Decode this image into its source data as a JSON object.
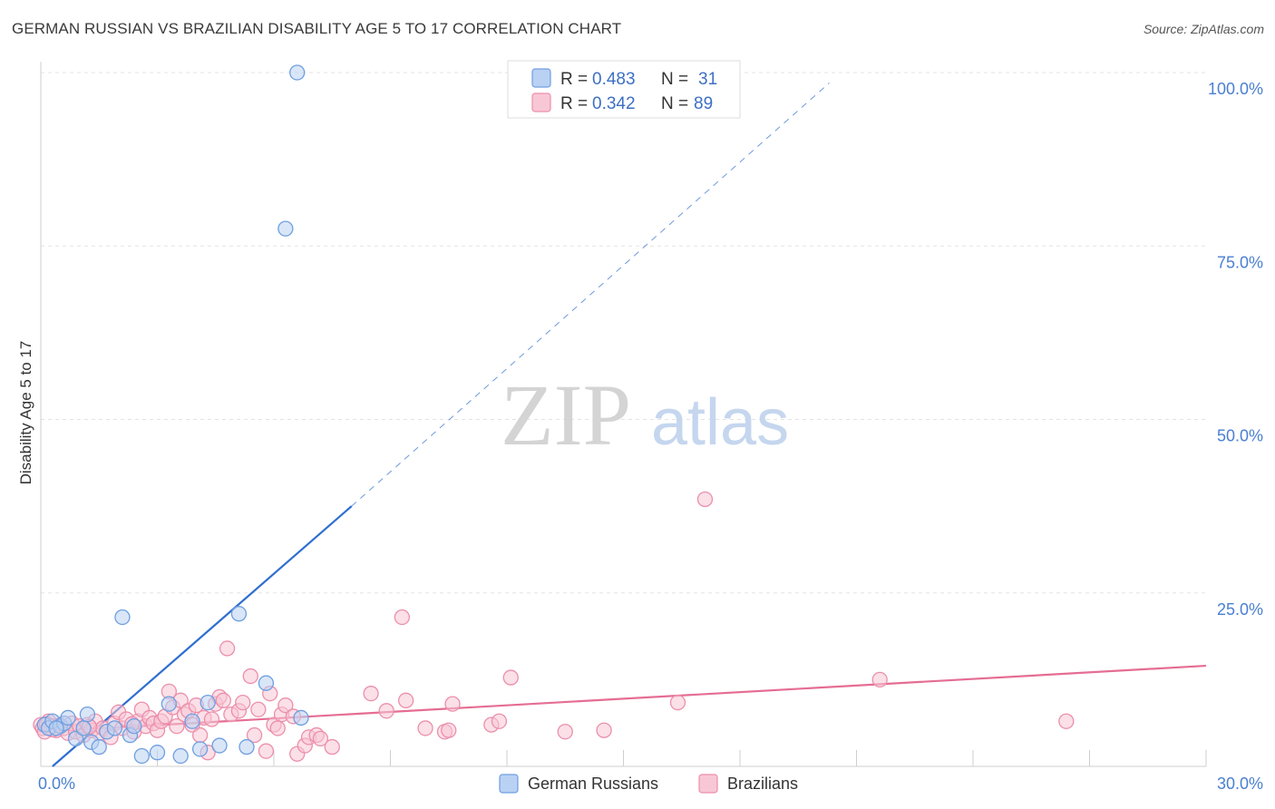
{
  "header": {
    "title": "GERMAN RUSSIAN VS BRAZILIAN DISABILITY AGE 5 TO 17 CORRELATION CHART",
    "source": "Source: ZipAtlas.com"
  },
  "watermark": {
    "zip": "ZIP",
    "atlas": "atlas"
  },
  "colors": {
    "blue": "#6f9fe0",
    "blue_fill": "#b9d1f3",
    "blue_line": "#2f6fcf",
    "pink": "#ec8fab",
    "pink_fill": "#f8c7d6",
    "pink_line": "#e56d93",
    "tick": "#4a7fd1",
    "grid": "#e3e3e3"
  },
  "legend": {
    "rows": [
      {
        "r_label": "R =",
        "r_value": "0.483",
        "n_label": "N =",
        "n_value": "31"
      },
      {
        "r_label": "R =",
        "r_value": "0.342",
        "n_label": "N =",
        "n_value": "89"
      }
    ]
  },
  "bottom_legend": {
    "items": [
      "German Russians",
      "Brazilians"
    ]
  },
  "chart_data": {
    "type": "scatter",
    "title": "GERMAN RUSSIAN VS BRAZILIAN DISABILITY AGE 5 TO 17 CORRELATION CHART",
    "xlabel": "",
    "ylabel": "Disability Age 5 to 17",
    "xlim": [
      0,
      30
    ],
    "ylim": [
      0,
      100
    ],
    "x_tick_labels": [
      "0.0%",
      "30.0%"
    ],
    "y_ticks": [
      25,
      50,
      75,
      100
    ],
    "y_tick_labels": [
      "25.0%",
      "50.0%",
      "75.0%",
      "100.0%"
    ],
    "series": [
      {
        "name": "German Russians",
        "color": "#6f9fe0",
        "r": 0.483,
        "n": 31,
        "trend": {
          "x0": 0.3,
          "y0": 0.0,
          "x1": 8.0,
          "y1": 37.5,
          "dash_to_x": 20.3,
          "dash_to_y": 98.5
        },
        "points": [
          [
            0.1,
            6.0
          ],
          [
            0.2,
            5.5
          ],
          [
            0.3,
            6.5
          ],
          [
            0.5,
            5.8
          ],
          [
            0.6,
            6.2
          ],
          [
            0.7,
            7.0
          ],
          [
            0.9,
            4.0
          ],
          [
            1.1,
            5.5
          ],
          [
            1.2,
            7.5
          ],
          [
            1.3,
            3.5
          ],
          [
            1.5,
            2.8
          ],
          [
            1.7,
            5.0
          ],
          [
            1.9,
            5.5
          ],
          [
            2.1,
            21.5
          ],
          [
            2.3,
            4.5
          ],
          [
            2.4,
            5.8
          ],
          [
            2.6,
            1.5
          ],
          [
            3.0,
            2.0
          ],
          [
            3.3,
            9.0
          ],
          [
            3.6,
            1.5
          ],
          [
            3.9,
            6.5
          ],
          [
            4.1,
            2.5
          ],
          [
            4.3,
            9.2
          ],
          [
            4.6,
            3.0
          ],
          [
            5.1,
            22.0
          ],
          [
            5.3,
            2.8
          ],
          [
            5.8,
            12.0
          ],
          [
            6.3,
            77.5
          ],
          [
            6.6,
            100.0
          ],
          [
            6.7,
            7.0
          ],
          [
            0.4,
            5.5
          ]
        ]
      },
      {
        "name": "Brazilians",
        "color": "#ec8fab",
        "r": 0.342,
        "n": 89,
        "trend": {
          "x0": 0.0,
          "y0": 5.0,
          "x1": 30.0,
          "y1": 14.5
        },
        "points": [
          [
            0.0,
            6.0
          ],
          [
            0.05,
            5.5
          ],
          [
            0.1,
            5.0
          ],
          [
            0.2,
            6.5
          ],
          [
            0.3,
            5.8
          ],
          [
            0.4,
            5.2
          ],
          [
            0.5,
            6.0
          ],
          [
            0.6,
            5.5
          ],
          [
            0.7,
            4.8
          ],
          [
            0.8,
            6.2
          ],
          [
            0.9,
            5.0
          ],
          [
            1.0,
            5.8
          ],
          [
            1.1,
            4.5
          ],
          [
            1.2,
            6.0
          ],
          [
            1.3,
            5.2
          ],
          [
            1.4,
            6.5
          ],
          [
            1.5,
            4.8
          ],
          [
            1.6,
            5.5
          ],
          [
            1.7,
            5.0
          ],
          [
            1.8,
            4.2
          ],
          [
            1.9,
            6.2
          ],
          [
            2.0,
            7.8
          ],
          [
            2.1,
            5.5
          ],
          [
            2.2,
            6.8
          ],
          [
            2.4,
            5.0
          ],
          [
            2.5,
            6.5
          ],
          [
            2.6,
            8.2
          ],
          [
            2.7,
            5.8
          ],
          [
            2.8,
            7.0
          ],
          [
            2.9,
            6.2
          ],
          [
            3.0,
            5.2
          ],
          [
            3.1,
            6.5
          ],
          [
            3.2,
            7.2
          ],
          [
            3.3,
            10.8
          ],
          [
            3.4,
            8.5
          ],
          [
            3.5,
            5.8
          ],
          [
            3.6,
            9.5
          ],
          [
            3.7,
            7.5
          ],
          [
            3.8,
            8.0
          ],
          [
            3.9,
            6.0
          ],
          [
            4.0,
            8.8
          ],
          [
            4.1,
            4.5
          ],
          [
            4.2,
            7.0
          ],
          [
            4.3,
            2.0
          ],
          [
            4.4,
            6.8
          ],
          [
            4.5,
            9.0
          ],
          [
            4.6,
            10.0
          ],
          [
            4.7,
            9.5
          ],
          [
            4.8,
            17.0
          ],
          [
            4.9,
            7.5
          ],
          [
            5.1,
            8.0
          ],
          [
            5.2,
            9.2
          ],
          [
            5.4,
            13.0
          ],
          [
            5.5,
            4.5
          ],
          [
            5.6,
            8.2
          ],
          [
            5.8,
            2.2
          ],
          [
            5.9,
            10.5
          ],
          [
            6.0,
            6.0
          ],
          [
            6.1,
            5.5
          ],
          [
            6.2,
            7.5
          ],
          [
            6.3,
            8.8
          ],
          [
            6.5,
            7.2
          ],
          [
            6.6,
            1.8
          ],
          [
            6.8,
            3.0
          ],
          [
            6.9,
            4.2
          ],
          [
            7.1,
            4.5
          ],
          [
            7.2,
            4.0
          ],
          [
            7.5,
            2.8
          ],
          [
            8.5,
            10.5
          ],
          [
            8.9,
            8.0
          ],
          [
            9.3,
            21.5
          ],
          [
            9.4,
            9.5
          ],
          [
            9.9,
            5.5
          ],
          [
            10.4,
            5.0
          ],
          [
            10.6,
            9.0
          ],
          [
            10.5,
            5.2
          ],
          [
            11.6,
            6.0
          ],
          [
            11.8,
            6.5
          ],
          [
            12.1,
            12.8
          ],
          [
            13.5,
            5.0
          ],
          [
            14.5,
            5.2
          ],
          [
            16.4,
            9.2
          ],
          [
            17.1,
            38.5
          ],
          [
            21.6,
            12.5
          ],
          [
            26.4,
            6.5
          ],
          [
            0.3,
            5.3
          ],
          [
            0.15,
            6.1
          ],
          [
            1.25,
            5.7
          ],
          [
            2.35,
            6.1
          ]
        ]
      }
    ]
  }
}
